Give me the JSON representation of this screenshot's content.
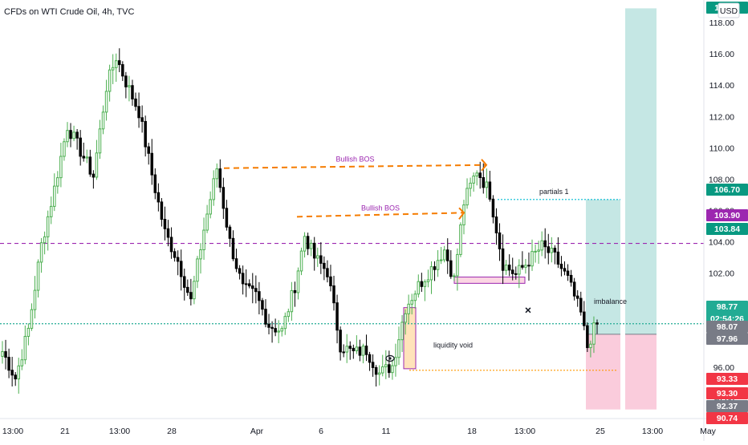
{
  "chart_data": {
    "type": "candlestick",
    "title": "CFDs on WTI Crude Oil, 4h, TVC",
    "currency": "USD",
    "x_ticks": [
      "13:00",
      "21",
      "13:00",
      "28",
      "Apr",
      "6",
      "11",
      "18",
      "13:00",
      "25",
      "13:00",
      "May"
    ],
    "y_ticks": [
      "94.00",
      "96.00",
      "98.00",
      "100.00",
      "102.00",
      "104.00",
      "106.00",
      "108.00",
      "110.00",
      "112.00",
      "114.00",
      "116.00",
      "118.00"
    ],
    "ylim": [
      90.7,
      119.2
    ],
    "grid": false,
    "candle_colors": {
      "up": "#4caf50",
      "down": "#000000"
    },
    "price_path_anchors": [
      [
        0,
        97.0
      ],
      [
        4,
        95.3
      ],
      [
        8,
        98.4
      ],
      [
        12,
        103.8
      ],
      [
        16,
        107.4
      ],
      [
        20,
        111.4
      ],
      [
        24,
        109.8
      ],
      [
        28,
        108.2
      ],
      [
        32,
        113.9
      ],
      [
        35,
        115.8
      ],
      [
        38,
        114.2
      ],
      [
        42,
        112.3
      ],
      [
        46,
        108.3
      ],
      [
        50,
        104.6
      ],
      [
        54,
        102.8
      ],
      [
        58,
        100.2
      ],
      [
        62,
        104.8
      ],
      [
        66,
        108.7
      ],
      [
        70,
        104.0
      ],
      [
        74,
        101.0
      ],
      [
        78,
        100.6
      ],
      [
        82,
        98.7
      ],
      [
        86,
        98.3
      ],
      [
        90,
        101.2
      ],
      [
        93,
        104.4
      ],
      [
        96,
        103.0
      ],
      [
        100,
        102.1
      ],
      [
        104,
        97.4
      ],
      [
        108,
        96.9
      ],
      [
        112,
        97.1
      ],
      [
        116,
        95.6
      ],
      [
        120,
        96.1
      ],
      [
        124,
        99.8
      ],
      [
        128,
        101.2
      ],
      [
        132,
        102.3
      ],
      [
        136,
        103.5
      ],
      [
        139,
        101.6
      ],
      [
        142,
        106.5
      ],
      [
        146,
        108.6
      ],
      [
        150,
        107.1
      ],
      [
        154,
        102.6
      ],
      [
        158,
        101.9
      ],
      [
        162,
        102.8
      ],
      [
        166,
        103.7
      ],
      [
        170,
        103.0
      ],
      [
        174,
        101.6
      ],
      [
        178,
        99.4
      ],
      [
        180,
        97.3
      ],
      [
        182,
        98.4
      ],
      [
        183,
        98.7
      ]
    ],
    "price_tags": [
      {
        "value": 106.7,
        "label": "106.70",
        "color": "#089981"
      },
      {
        "value": 103.9,
        "label": "103.90",
        "color": "#9c27b0"
      },
      {
        "value": 103.84,
        "label": "103.84",
        "color": "#089981"
      },
      {
        "value": 98.77,
        "label": "98.77",
        "sub": "02:54:26",
        "color": "#22ab94"
      },
      {
        "value": 98.07,
        "label": "98.07",
        "color": "#787b86"
      },
      {
        "value": 97.96,
        "label": "97.96",
        "color": "#787b86"
      },
      {
        "value": 93.33,
        "label": "93.33",
        "color": "#f23645"
      },
      {
        "value": 93.3,
        "label": "93.30",
        "color": "#f23645"
      },
      {
        "value": 92.37,
        "label": "92.37",
        "color": "#787b86"
      },
      {
        "value": 90.74,
        "label": "90.74",
        "color": "#f23645"
      },
      {
        "value": 118.97,
        "label": "118.97",
        "color": "#089981"
      }
    ],
    "annotations": [
      {
        "text": "Bullish BOS",
        "color": "#9c27b0",
        "price": 108.7,
        "x_from": 279,
        "x_to": 606
      },
      {
        "text": "Bullish BOS",
        "color": "#9c27b0",
        "price": 105.6,
        "x_from": 370,
        "x_to": 578
      },
      {
        "text": "partials 1",
        "color": "#131722",
        "price": 106.7
      },
      {
        "text": "imbalance",
        "color": "#131722",
        "price": 100.2
      },
      {
        "text": "liquidity void",
        "color": "#131722",
        "price": 97.4
      },
      {
        "text": "×",
        "color": "#131722",
        "price": 99.6
      }
    ],
    "levels": [
      {
        "price": 103.9,
        "style": "dashed",
        "color": "#9c27b0"
      },
      {
        "price": 98.77,
        "style": "dotted",
        "color": "#22ab94"
      },
      {
        "price": 106.7,
        "style": "dotted",
        "color": "#00bcd4"
      },
      {
        "price": 95.8,
        "style": "dotted",
        "color": "#ff9800"
      }
    ],
    "zones": [
      {
        "kind": "liquidity void",
        "top": 99.8,
        "bottom": 95.9
      },
      {
        "kind": "order block",
        "top": 101.75,
        "bottom": 101.35
      },
      {
        "kind": "imbalance target",
        "top": 106.7,
        "bottom": 98.1,
        "color": "#b2dfdb"
      },
      {
        "kind": "stop",
        "top": 98.1,
        "bottom": 93.3,
        "color": "#f8bbd0"
      },
      {
        "kind": "target",
        "top": 118.9,
        "bottom": 98.1,
        "color": "#b2dfdb"
      },
      {
        "kind": "stop",
        "top": 98.1,
        "bottom": 93.3,
        "color": "#f8bbd0"
      }
    ]
  }
}
